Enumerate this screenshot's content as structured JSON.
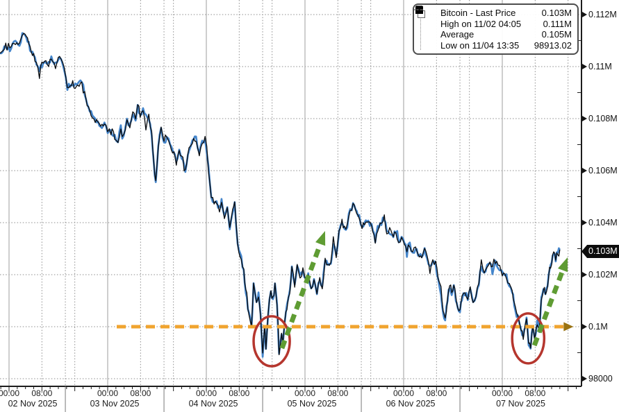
{
  "colors": {
    "line_blue": "#4485cb",
    "line_black": "#0b0e12",
    "orange": "#f0a42f",
    "orange_head": "#9a7312",
    "green": "#5f9c33",
    "red": "#b5362e",
    "grid": "#8c8c8c",
    "midnight_line": "#9e9e9e",
    "axis": "#1c1c1c",
    "badge_bg": "#0d0d0d"
  },
  "legend": {
    "rows": [
      {
        "icon": "last-price-swatch",
        "label": "Bitcoin - Last Price",
        "value": "0.103M"
      },
      {
        "icon": "high-marker",
        "label": "High on 11/02 04:05",
        "value": "0.111M"
      },
      {
        "icon": "average-marker",
        "label": "Average",
        "value": "0.105M"
      },
      {
        "icon": "low-marker",
        "label": "Low on 11/04 13:35",
        "value": "98913.02"
      }
    ]
  },
  "axis_y": {
    "ticks": [
      {
        "label": "0.112M",
        "value": 112000
      },
      {
        "label": "0.11M",
        "value": 110000
      },
      {
        "label": "0.108M",
        "value": 108000
      },
      {
        "label": "0.106M",
        "value": 106000
      },
      {
        "label": "0.104M",
        "value": 104000
      },
      {
        "label": "0.102M",
        "value": 102000
      },
      {
        "label": "0.1M",
        "value": 100000
      },
      {
        "label": "98000",
        "value": 98000
      }
    ],
    "minor_tick_values": [
      99000,
      101000,
      103000,
      105000,
      107000,
      109000,
      111000
    ],
    "last_price": {
      "label": "0.103M",
      "value": 102960
    }
  },
  "axis_x": {
    "days": [
      {
        "label": "02 Nov 2025",
        "start_hour": 0
      },
      {
        "label": "03 Nov 2025",
        "start_hour": 24
      },
      {
        "label": "04 Nov 2025",
        "start_hour": 48
      },
      {
        "label": "05 Nov 2025",
        "start_hour": 72
      },
      {
        "label": "06 Nov 2025",
        "start_hour": 96
      },
      {
        "label": "07 Nov 2025",
        "start_hour": 120
      }
    ],
    "time_marks": [
      {
        "label": "00:00",
        "offset_hours": 0
      },
      {
        "label": "08:00",
        "offset_hours": 8
      }
    ],
    "separator_offset_hours": 13.7
  },
  "chart_data": {
    "type": "line",
    "series_name": "Bitcoin - Last Price",
    "x_unit": "hours since 2025-11-02 00:00",
    "y_unit": "USD",
    "x_range": [
      -2.2,
      139.3
    ],
    "y_range": [
      98000,
      112000
    ],
    "grid": true,
    "high": {
      "time_label": "11/02 04:05",
      "value": 111000,
      "value_label": "0.111M"
    },
    "low": {
      "time_label": "11/04 13:35",
      "value": 98913.02
    },
    "average": {
      "value": 105000,
      "value_label": "0.105M"
    },
    "last": {
      "value": 103000,
      "value_label": "0.103M"
    },
    "points": [
      [
        -2.2,
        110510
      ],
      [
        -0.8,
        110800
      ],
      [
        0.2,
        110640
      ],
      [
        1.2,
        110960
      ],
      [
        2.2,
        110800
      ],
      [
        3.9,
        111310
      ],
      [
        5.1,
        110690
      ],
      [
        6.3,
        110320
      ],
      [
        7.4,
        109810
      ],
      [
        8.3,
        110210
      ],
      [
        9.3,
        110030
      ],
      [
        10.3,
        110350
      ],
      [
        11.3,
        110030
      ],
      [
        12.3,
        110350
      ],
      [
        13.4,
        109950
      ],
      [
        14.2,
        109170
      ],
      [
        15.2,
        109410
      ],
      [
        16.4,
        109230
      ],
      [
        17.7,
        109410
      ],
      [
        18.4,
        109010
      ],
      [
        19.3,
        108370
      ],
      [
        20.3,
        108030
      ],
      [
        21.3,
        107890
      ],
      [
        22.3,
        107680
      ],
      [
        23.2,
        107870
      ],
      [
        24,
        107490
      ],
      [
        24.8,
        107650
      ],
      [
        25.7,
        107280
      ],
      [
        26.5,
        107150
      ],
      [
        27.2,
        107650
      ],
      [
        27.9,
        107310
      ],
      [
        28.7,
        107970
      ],
      [
        29.4,
        107680
      ],
      [
        30.1,
        108270
      ],
      [
        30.8,
        107970
      ],
      [
        31.3,
        108430
      ],
      [
        31.9,
        108080
      ],
      [
        32.6,
        108370
      ],
      [
        33.3,
        107870
      ],
      [
        34,
        108110
      ],
      [
        34.7,
        107410
      ],
      [
        35.2,
        106290
      ],
      [
        35.7,
        105550
      ],
      [
        36.3,
        106880
      ],
      [
        37,
        107710
      ],
      [
        37.7,
        107040
      ],
      [
        38.4,
        107330
      ],
      [
        39.2,
        106910
      ],
      [
        40.1,
        106750
      ],
      [
        40.7,
        106290
      ],
      [
        41.4,
        106770
      ],
      [
        42.3,
        106430
      ],
      [
        42.9,
        105950
      ],
      [
        43.8,
        106830
      ],
      [
        44.6,
        107150
      ],
      [
        45.5,
        107230
      ],
      [
        46.3,
        106610
      ],
      [
        47,
        107090
      ],
      [
        47.7,
        107280
      ],
      [
        48.5,
        106080
      ],
      [
        49.2,
        105040
      ],
      [
        49.9,
        104670
      ],
      [
        50.5,
        104770
      ],
      [
        51.2,
        104430
      ],
      [
        51.7,
        104830
      ],
      [
        52.4,
        104160
      ],
      [
        53.1,
        104560
      ],
      [
        53.7,
        103760
      ],
      [
        54.4,
        104430
      ],
      [
        54.9,
        104770
      ],
      [
        55.6,
        103150
      ],
      [
        56.5,
        102610
      ],
      [
        57.1,
        102160
      ],
      [
        57.6,
        101360
      ],
      [
        58.1,
        100750
      ],
      [
        58.7,
        100210
      ],
      [
        59,
        100030
      ],
      [
        59.5,
        101570
      ],
      [
        60.2,
        100830
      ],
      [
        60.7,
        101230
      ],
      [
        61.2,
        100430
      ],
      [
        61.7,
        98880
      ],
      [
        62.2,
        100030
      ],
      [
        62.5,
        99040
      ],
      [
        63,
        100430
      ],
      [
        63.7,
        101440
      ],
      [
        64.2,
        100960
      ],
      [
        64.7,
        101570
      ],
      [
        65.2,
        100910
      ],
      [
        65.7,
        99010
      ],
      [
        66.3,
        99760
      ],
      [
        66.6,
        99410
      ],
      [
        67.1,
        100290
      ],
      [
        67.6,
        100750
      ],
      [
        68.3,
        101360
      ],
      [
        68.8,
        102240
      ],
      [
        69.5,
        101630
      ],
      [
        70.1,
        102350
      ],
      [
        70.8,
        101890
      ],
      [
        71.5,
        102160
      ],
      [
        72.2,
        101810
      ],
      [
        72.8,
        101950
      ],
      [
        73.5,
        101490
      ],
      [
        74.2,
        101760
      ],
      [
        74.9,
        101360
      ],
      [
        75.6,
        101890
      ],
      [
        76.2,
        101440
      ],
      [
        76.9,
        102560
      ],
      [
        77.6,
        102290
      ],
      [
        78.3,
        102430
      ],
      [
        78.9,
        103230
      ],
      [
        79.6,
        102770
      ],
      [
        80.3,
        103630
      ],
      [
        81,
        104030
      ],
      [
        81.6,
        103760
      ],
      [
        82.3,
        103840
      ],
      [
        83,
        104430
      ],
      [
        83.7,
        104640
      ],
      [
        84.3,
        104560
      ],
      [
        85.2,
        104240
      ],
      [
        85.9,
        103760
      ],
      [
        86.5,
        104030
      ],
      [
        87.4,
        104080
      ],
      [
        88.2,
        103890
      ],
      [
        89.1,
        103310
      ],
      [
        89.7,
        103760
      ],
      [
        90.6,
        103970
      ],
      [
        91.3,
        104210
      ],
      [
        91.9,
        103570
      ],
      [
        92.6,
        103760
      ],
      [
        93.5,
        103440
      ],
      [
        94.1,
        103630
      ],
      [
        94.8,
        103230
      ],
      [
        95.5,
        103490
      ],
      [
        96.2,
        103170
      ],
      [
        96.8,
        102960
      ],
      [
        97.5,
        103170
      ],
      [
        98.2,
        102770
      ],
      [
        98.9,
        103090
      ],
      [
        99.5,
        102830
      ],
      [
        100.4,
        102610
      ],
      [
        101.1,
        102910
      ],
      [
        101.7,
        102690
      ],
      [
        102.4,
        102290
      ],
      [
        103.1,
        102560
      ],
      [
        103.8,
        102430
      ],
      [
        104.4,
        101760
      ],
      [
        105.1,
        101230
      ],
      [
        105.6,
        100560
      ],
      [
        106.1,
        100240
      ],
      [
        106.7,
        101090
      ],
      [
        107.2,
        101630
      ],
      [
        107.7,
        101230
      ],
      [
        108.2,
        101680
      ],
      [
        108.7,
        101090
      ],
      [
        109.2,
        100770
      ],
      [
        109.7,
        100640
      ],
      [
        110.2,
        101090
      ],
      [
        110.9,
        101280
      ],
      [
        111.6,
        101090
      ],
      [
        112.2,
        101410
      ],
      [
        112.9,
        100910
      ],
      [
        113.6,
        101230
      ],
      [
        114.3,
        101680
      ],
      [
        114.9,
        102370
      ],
      [
        115.6,
        102110
      ],
      [
        116.3,
        102290
      ],
      [
        117,
        102480
      ],
      [
        117.6,
        102210
      ],
      [
        118.3,
        102480
      ],
      [
        119,
        102350
      ],
      [
        119.7,
        102160
      ],
      [
        120.3,
        101970
      ],
      [
        121,
        101890
      ],
      [
        121.7,
        101570
      ],
      [
        122.4,
        101360
      ],
      [
        122.9,
        100910
      ],
      [
        123.5,
        100430
      ],
      [
        124.1,
        100240
      ],
      [
        124.6,
        99950
      ],
      [
        125.1,
        99570
      ],
      [
        125.6,
        100030
      ],
      [
        125.9,
        100290
      ],
      [
        126.4,
        99360
      ],
      [
        126.9,
        99230
      ],
      [
        127.4,
        100080
      ],
      [
        127.9,
        99570
      ],
      [
        128.5,
        100160
      ],
      [
        129,
        99810
      ],
      [
        129.5,
        101040
      ],
      [
        130,
        101410
      ],
      [
        130.5,
        101230
      ],
      [
        131,
        101630
      ],
      [
        131.5,
        102210
      ],
      [
        132,
        102480
      ],
      [
        132.5,
        102830
      ],
      [
        133,
        102610
      ],
      [
        133.5,
        102910
      ],
      [
        134,
        102960
      ]
    ],
    "annotations": {
      "support_line": {
        "price": 100000,
        "t_start": 26.2,
        "t_end": 137.3,
        "style": "dashed",
        "color_key": "orange"
      },
      "arrows": [
        {
          "from": [
            66.4,
            99170
          ],
          "to": [
            76.9,
            103680
          ]
        },
        {
          "from": [
            127.8,
            99280
          ],
          "to": [
            135.9,
            102670
          ]
        }
      ],
      "ellipses": [
        {
          "center": [
            63.9,
            99440
          ],
          "rx_hours": 4.4,
          "ry_price": 960
        },
        {
          "center": [
            126.3,
            99550
          ],
          "rx_hours": 3.9,
          "ry_price": 960
        }
      ]
    }
  }
}
